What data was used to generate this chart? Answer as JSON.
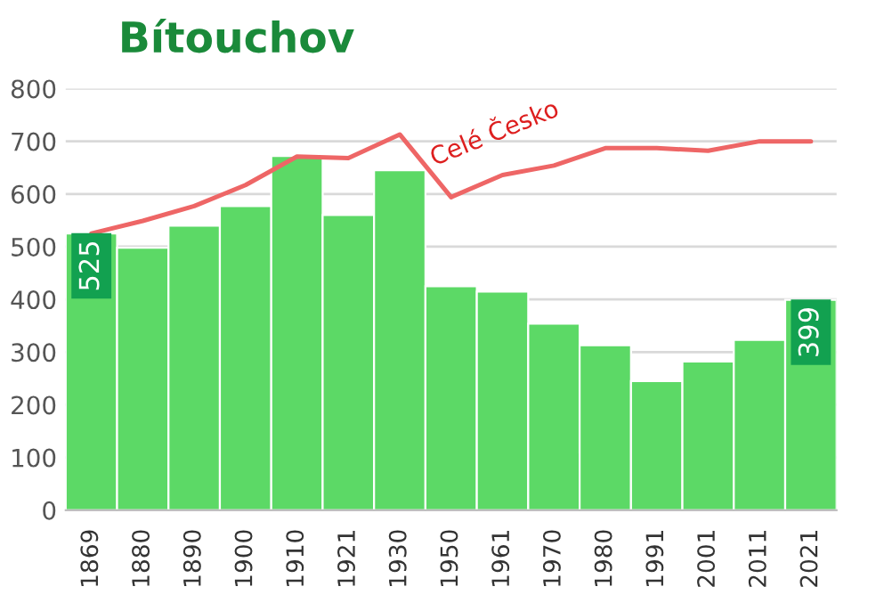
{
  "chart_data": {
    "type": "bar",
    "title": "Bítouchov",
    "categories": [
      "1869",
      "1880",
      "1890",
      "1900",
      "1910",
      "1921",
      "1930",
      "1950",
      "1961",
      "1970",
      "1980",
      "1991",
      "2001",
      "2011",
      "2021"
    ],
    "series": [
      {
        "color": "#5cd966",
        "values": [
          525,
          498,
          540,
          577,
          672,
          560,
          645,
          425,
          415,
          354,
          313,
          245,
          282,
          323,
          399
        ],
        "value_labels": [
          "525",
          null,
          null,
          null,
          null,
          null,
          null,
          null,
          null,
          null,
          null,
          null,
          null,
          null,
          "399"
        ]
      },
      {
        "type": "line",
        "name": "Celé Česko",
        "color": "#ee6666",
        "values": [
          525,
          549,
          577,
          617,
          671,
          668,
          713,
          594,
          636,
          654,
          687,
          687,
          682,
          700,
          700
        ]
      }
    ],
    "ylim": [
      0,
      800
    ],
    "yticks": [
      0,
      100,
      200,
      300,
      400,
      500,
      600,
      700,
      800
    ],
    "grid": "y",
    "legend": false,
    "line_style": "solid",
    "marker": "none"
  }
}
